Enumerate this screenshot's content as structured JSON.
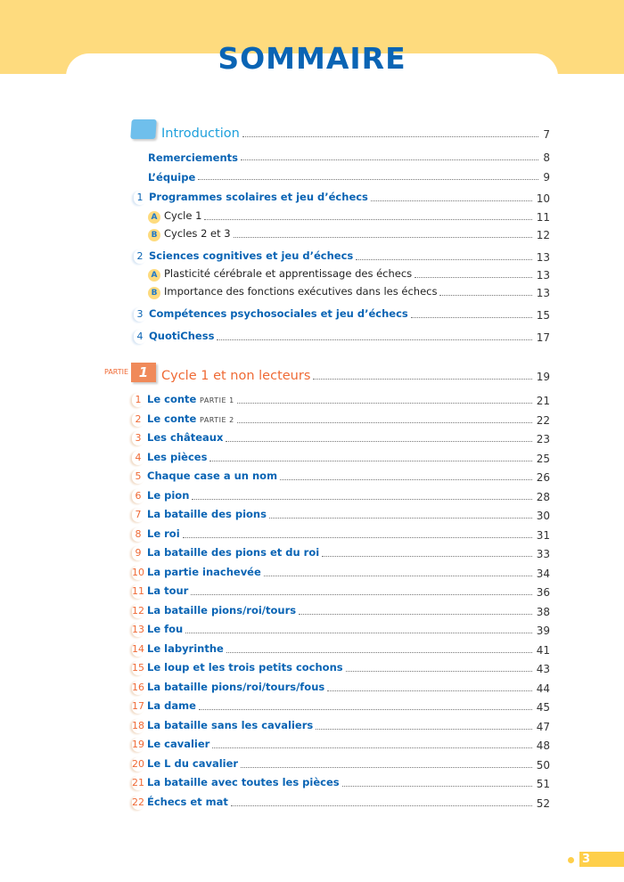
{
  "title": "SOMMAIRE",
  "intro": {
    "label": "Introduction",
    "page": "7",
    "icon": "tab-folder-icon"
  },
  "intro_items": [
    {
      "label": "Remerciements",
      "page": "8"
    },
    {
      "label": "L’équipe",
      "page": "9"
    }
  ],
  "chapters": [
    {
      "num": "1",
      "label": "Programmes scolaires et jeu d’échecs",
      "page": "10",
      "subs": [
        {
          "letter": "A",
          "label": "Cycle 1",
          "page": "11"
        },
        {
          "letter": "B",
          "label": "Cycles 2 et 3",
          "page": "12"
        }
      ]
    },
    {
      "num": "2",
      "label": "Sciences cognitives et jeu d’échecs",
      "page": "13",
      "subs": [
        {
          "letter": "A",
          "label": "Plasticité cérébrale et apprentissage des échecs",
          "page": "13"
        },
        {
          "letter": "B",
          "label": "Importance des fonctions exécutives dans les échecs",
          "page": "13"
        }
      ]
    },
    {
      "num": "3",
      "label": "Compétences psychosociales et jeu d’échecs",
      "page": "15",
      "subs": []
    },
    {
      "num": "4",
      "label": "QuotiChess",
      "page": "17",
      "subs": []
    }
  ],
  "part": {
    "prefix": "PARTIE",
    "num": "1",
    "label": "Cycle 1 et non lecteurs",
    "page": "19"
  },
  "part_items": [
    {
      "num": "1",
      "label": "Le conte",
      "suffix": "PARTIE 1",
      "page": "21"
    },
    {
      "num": "2",
      "label": "Le conte",
      "suffix": "PARTIE 2",
      "page": "22"
    },
    {
      "num": "3",
      "label": "Les châteaux",
      "page": "23"
    },
    {
      "num": "4",
      "label": "Les pièces",
      "page": "25"
    },
    {
      "num": "5",
      "label": "Chaque case a un nom",
      "page": "26"
    },
    {
      "num": "6",
      "label": "Le pion",
      "page": "28"
    },
    {
      "num": "7",
      "label": "La bataille des pions",
      "page": "30"
    },
    {
      "num": "8",
      "label": "Le roi",
      "page": "31"
    },
    {
      "num": "9",
      "label": "La bataille des pions et du roi",
      "page": "33"
    },
    {
      "num": "10",
      "label": "La partie inachevée",
      "page": "34"
    },
    {
      "num": "11",
      "label": "La tour",
      "page": "36"
    },
    {
      "num": "12",
      "label": "La bataille pions/roi/tours",
      "page": "38"
    },
    {
      "num": "13",
      "label": "Le fou",
      "page": "39"
    },
    {
      "num": "14",
      "label": "Le labyrinthe",
      "page": "41"
    },
    {
      "num": "15",
      "label": "Le loup et les trois petits cochons",
      "page": "43"
    },
    {
      "num": "16",
      "label": "La bataille pions/roi/tours/fous",
      "page": "44"
    },
    {
      "num": "17",
      "label": "La dame",
      "page": "45"
    },
    {
      "num": "18",
      "label": "La bataille sans les cavaliers",
      "page": "47"
    },
    {
      "num": "19",
      "label": "Le cavalier",
      "page": "48"
    },
    {
      "num": "20",
      "label": "Le L du cavalier",
      "page": "50"
    },
    {
      "num": "21",
      "label": "La bataille avec toutes les pièces",
      "page": "51"
    },
    {
      "num": "22",
      "label": "Échecs et mat",
      "page": "52"
    }
  ],
  "page_number": "3",
  "colors": {
    "header": "#fedb7e",
    "title": "#0a64b4",
    "intro": "#1ea0dc",
    "part": "#ef6a35"
  }
}
